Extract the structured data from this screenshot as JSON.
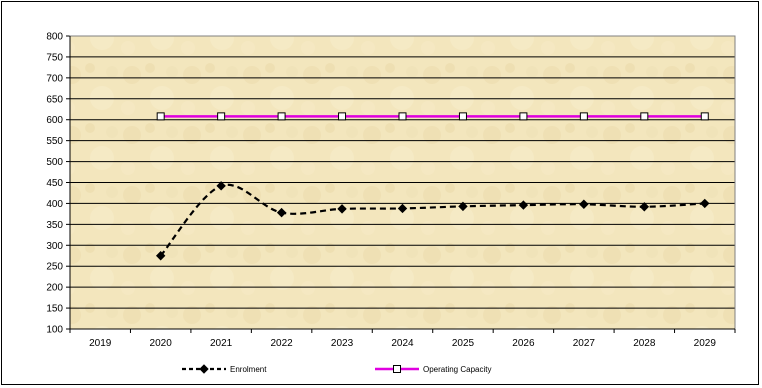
{
  "chart_data": {
    "type": "line",
    "title": "",
    "xlabel": "",
    "ylabel": "",
    "categories": [
      "2019",
      "2020",
      "2021",
      "2022",
      "2023",
      "2024",
      "2025",
      "2026",
      "2027",
      "2028",
      "2029"
    ],
    "ylim": [
      100,
      800
    ],
    "yticks": [
      100,
      150,
      200,
      250,
      300,
      350,
      400,
      450,
      500,
      550,
      600,
      650,
      700,
      750,
      800
    ],
    "grid": true,
    "legend_position": "bottom",
    "plot_background": "#f3e6bd",
    "series": [
      {
        "name": "Enrolment",
        "color": "#000000",
        "style": "dashed",
        "marker": "diamond",
        "values": [
          null,
          275,
          442,
          378,
          387,
          388,
          393,
          396,
          398,
          392,
          400
        ]
      },
      {
        "name": "Operating Capacity",
        "color": "#e000e0",
        "style": "solid",
        "marker": "square-open",
        "values": [
          null,
          608,
          608,
          608,
          608,
          608,
          608,
          608,
          608,
          608,
          608
        ]
      }
    ]
  }
}
